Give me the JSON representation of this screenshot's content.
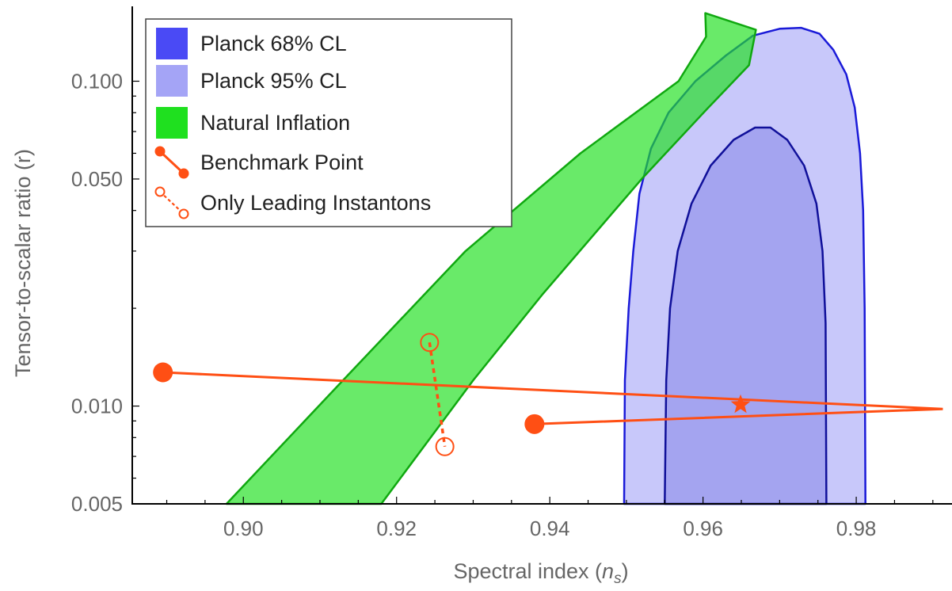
{
  "chart_data": {
    "type": "scatter",
    "xlabel_main": "Spectral index (",
    "xlabel_var": "n",
    "xlabel_sub": "s",
    "xlabel_close": ")",
    "ylabel": "Tensor-to-scalar ratio (r)",
    "xlim": [
      0.8855,
      0.9925
    ],
    "ylim": [
      0.005,
      0.17
    ],
    "yscale": "log",
    "x_ticks": [
      {
        "value": 0.9,
        "label": "0.90"
      },
      {
        "value": 0.92,
        "label": "0.92"
      },
      {
        "value": 0.94,
        "label": "0.94"
      },
      {
        "value": 0.96,
        "label": "0.96"
      },
      {
        "value": 0.98,
        "label": "0.98"
      }
    ],
    "y_ticks": [
      {
        "value": 0.005,
        "label": "0.005"
      },
      {
        "value": 0.01,
        "label": "0.010"
      },
      {
        "value": 0.05,
        "label": "0.050"
      },
      {
        "value": 0.1,
        "label": "0.100"
      }
    ],
    "legend": {
      "position": "top-left",
      "entries": [
        {
          "label": "Planck 68% CL",
          "swatch_color": "#4a4af5"
        },
        {
          "label": "Planck 95% CL",
          "swatch_color": "#a4a4f6"
        },
        {
          "label": "Natural Inflation",
          "swatch_color": "#1fe01f"
        },
        {
          "label": "Benchmark Point",
          "swatch_color": "#ff4f14"
        },
        {
          "label": "Only Leading Instantons",
          "swatch_color": "#ff4f14"
        }
      ]
    },
    "regions": [
      {
        "name": "Planck 95% CL",
        "fill": "#c8c8fa",
        "stroke": "#1a1ad8",
        "points": [
          [
            0.9497,
            0.005
          ],
          [
            0.9498,
            0.012
          ],
          [
            0.9503,
            0.02
          ],
          [
            0.9509,
            0.03
          ],
          [
            0.9517,
            0.045
          ],
          [
            0.9532,
            0.062
          ],
          [
            0.9555,
            0.08
          ],
          [
            0.959,
            0.1
          ],
          [
            0.963,
            0.12
          ],
          [
            0.9665,
            0.138
          ],
          [
            0.97,
            0.145
          ],
          [
            0.9728,
            0.146
          ],
          [
            0.9752,
            0.14
          ],
          [
            0.977,
            0.125
          ],
          [
            0.9787,
            0.105
          ],
          [
            0.9798,
            0.083
          ],
          [
            0.9805,
            0.06
          ],
          [
            0.9809,
            0.04
          ],
          [
            0.9811,
            0.02
          ],
          [
            0.9812,
            0.005
          ]
        ]
      },
      {
        "name": "Planck 68% CL",
        "fill": "#a4a4f0",
        "stroke": "#10109a",
        "points": [
          [
            0.955,
            0.005
          ],
          [
            0.9552,
            0.012
          ],
          [
            0.9557,
            0.02
          ],
          [
            0.9567,
            0.03
          ],
          [
            0.9585,
            0.042
          ],
          [
            0.961,
            0.055
          ],
          [
            0.964,
            0.066
          ],
          [
            0.9668,
            0.072
          ],
          [
            0.9688,
            0.072
          ],
          [
            0.971,
            0.066
          ],
          [
            0.9732,
            0.055
          ],
          [
            0.9748,
            0.042
          ],
          [
            0.9756,
            0.03
          ],
          [
            0.976,
            0.018
          ],
          [
            0.9761,
            0.005
          ]
        ]
      },
      {
        "name": "Natural Inflation",
        "fill": "rgba(34,224,34,0.68)",
        "stroke": "#10a810",
        "points": [
          [
            0.8978,
            0.005
          ],
          [
            0.913,
            0.012
          ],
          [
            0.929,
            0.03
          ],
          [
            0.944,
            0.06
          ],
          [
            0.9568,
            0.1
          ],
          [
            0.9604,
            0.137
          ],
          [
            0.9603,
            0.162
          ],
          [
            0.9669,
            0.144
          ],
          [
            0.966,
            0.112
          ],
          [
            0.9605,
            0.082
          ],
          [
            0.952,
            0.05
          ],
          [
            0.939,
            0.022
          ],
          [
            0.93,
            0.012
          ],
          [
            0.918,
            0.005
          ]
        ]
      }
    ],
    "series": [
      {
        "name": "Benchmark Point",
        "style": "solid",
        "color": "#ff4f14",
        "points": [
          [
            0.8895,
            0.0127
          ],
          [
            0.9913,
            0.0098
          ],
          [
            0.938,
            0.0088
          ]
        ]
      },
      {
        "name": "Only Leading Instantons",
        "style": "dashed",
        "color": "#ff4f14",
        "points": [
          [
            0.9243,
            0.0157
          ],
          [
            0.9263,
            0.0075
          ]
        ]
      }
    ],
    "star": {
      "x": 0.9649,
      "y": 0.0101,
      "color": "#ff4f14"
    }
  }
}
